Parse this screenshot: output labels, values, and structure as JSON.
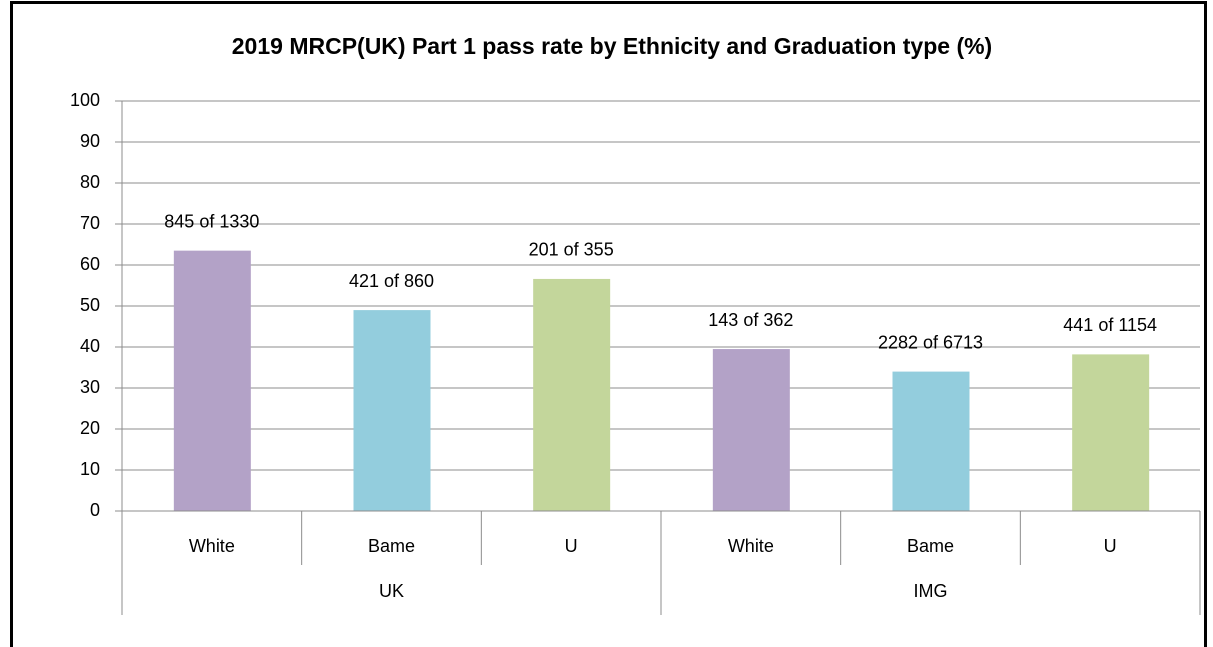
{
  "chart_data": {
    "type": "bar",
    "title": "2019 MRCP(UK) Part 1 pass rate by Ethnicity and Graduation type  (%)",
    "groups": [
      {
        "label": "UK",
        "categories": [
          "White",
          "Bame",
          "U"
        ]
      },
      {
        "label": "IMG",
        "categories": [
          "White",
          "Bame",
          "U"
        ]
      }
    ],
    "values": [
      63.5,
      49,
      56.6,
      39.5,
      34,
      38.2
    ],
    "annotations": [
      "845 of 1330",
      "421 of 860",
      "201 of 355",
      "143 of 362",
      "2282 of 6713",
      "441 of 1154"
    ],
    "colors": [
      "#b3a2c7",
      "#93cddd",
      "#c3d69b",
      "#b3a2c7",
      "#93cddd",
      "#c3d69b"
    ],
    "ylim": [
      0,
      100
    ],
    "yticks": [
      0,
      10,
      20,
      30,
      40,
      50,
      60,
      70,
      80,
      90,
      100
    ],
    "grid": true
  }
}
